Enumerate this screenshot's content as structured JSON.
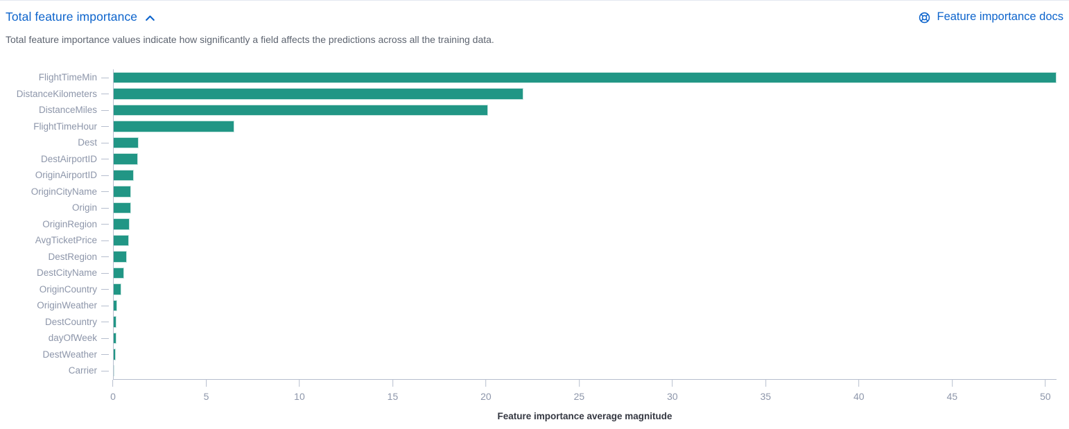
{
  "header": {
    "title": "Total feature importance",
    "collapse_icon": "chevron-up",
    "docs_link_label": "Feature importance docs",
    "docs_icon": "help-lifebuoy",
    "description": "Total feature importance values indicate how significantly a field affects the predictions across all the training data."
  },
  "colors": {
    "link_blue": "#0d64cc",
    "bar_teal": "#219685",
    "axis_label_gray": "#8d96aa",
    "axis_line_gray": "#b6bece",
    "description_gray": "#5d6470",
    "axis_title_dark": "#343741"
  },
  "chart_data": {
    "type": "bar",
    "orientation": "horizontal",
    "title": "",
    "xlabel": "Feature importance average magnitude",
    "ylabel": "",
    "grid": false,
    "legend": false,
    "xlim": [
      0,
      50.6
    ],
    "xticks": [
      0,
      5,
      10,
      15,
      20,
      25,
      30,
      35,
      40,
      45,
      50
    ],
    "categories": [
      "FlightTimeMin",
      "DistanceKilometers",
      "DistanceMiles",
      "FlightTimeHour",
      "Dest",
      "DestAirportID",
      "OriginAirportID",
      "OriginCityName",
      "Origin",
      "OriginRegion",
      "AvgTicketPrice",
      "DestRegion",
      "DestCityName",
      "OriginCountry",
      "OriginWeather",
      "DestCountry",
      "dayOfWeek",
      "DestWeather",
      "Carrier"
    ],
    "values": [
      50.6,
      22.0,
      20.1,
      6.5,
      1.37,
      1.35,
      1.1,
      0.98,
      0.96,
      0.89,
      0.85,
      0.74,
      0.6,
      0.44,
      0.21,
      0.17,
      0.17,
      0.15,
      0.07
    ]
  }
}
